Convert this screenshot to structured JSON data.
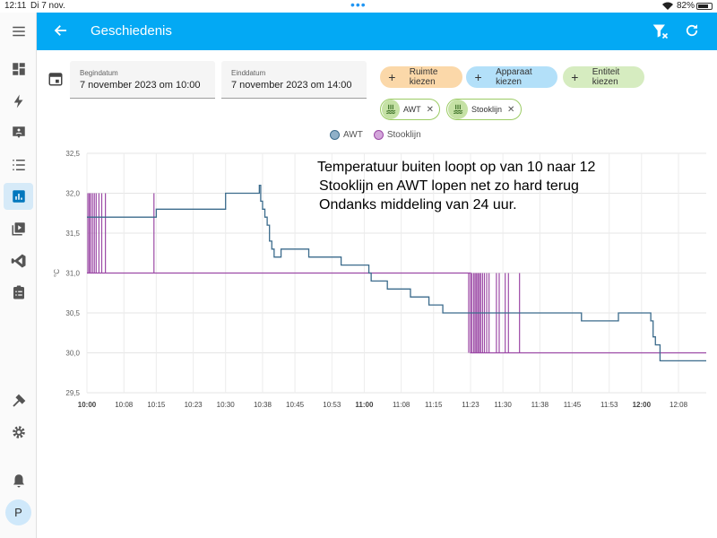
{
  "status_bar": {
    "time": "12:11",
    "date": "Di 7 nov.",
    "battery": "82%",
    "battery_level": 0.82
  },
  "header": {
    "title": "Geschiedenis"
  },
  "sidebar": {
    "items": [
      "dashboard-icon",
      "energy-icon",
      "logbook-icon",
      "todo-list-icon",
      "history-icon",
      "media-icon",
      "vscode-icon",
      "checklist-icon"
    ],
    "active": "history-icon",
    "bottom": [
      "developer-tools-icon",
      "settings-icon",
      "notifications-icon"
    ],
    "avatar": "P"
  },
  "date_range": {
    "start_label": "Begindatum",
    "start_value": "7 november 2023 om 10:00",
    "end_label": "Einddatum",
    "end_value": "7 november 2023 om 14:00"
  },
  "pickers": {
    "area": "Ruimte kiezen",
    "device": "Apparaat kiezen",
    "entity": "Entiteit kiezen"
  },
  "chips": [
    "AWT",
    "Stooklijn"
  ],
  "annotation": {
    "line1": "Temperatuur buiten loopt op van 10 naar 12",
    "line2": "Stooklijn en AWT lopen net zo hard terug",
    "line3": "Ondanks middeling van 24 uur."
  },
  "colors": {
    "accent": "#03a9f4",
    "awt": "#3b6b8c",
    "stooklijn": "#9c4aa6"
  },
  "chart_data": {
    "type": "line",
    "unit": "°C",
    "ylim": [
      29.5,
      32.5
    ],
    "y_ticks": [
      "32,5",
      "32,0",
      "31,5",
      "31,0",
      "30,5",
      "30,0",
      "29,5"
    ],
    "x_ticks": [
      {
        "label": "10:00",
        "bold": true,
        "t": 0
      },
      {
        "label": "10:08",
        "bold": false,
        "t": 8
      },
      {
        "label": "10:15",
        "bold": false,
        "t": 15
      },
      {
        "label": "10:23",
        "bold": false,
        "t": 23
      },
      {
        "label": "10:30",
        "bold": false,
        "t": 30
      },
      {
        "label": "10:38",
        "bold": false,
        "t": 38
      },
      {
        "label": "10:45",
        "bold": false,
        "t": 45
      },
      {
        "label": "10:53",
        "bold": false,
        "t": 53
      },
      {
        "label": "11:00",
        "bold": true,
        "t": 60
      },
      {
        "label": "11:08",
        "bold": false,
        "t": 68
      },
      {
        "label": "11:15",
        "bold": false,
        "t": 75
      },
      {
        "label": "11:23",
        "bold": false,
        "t": 83
      },
      {
        "label": "11:30",
        "bold": false,
        "t": 90
      },
      {
        "label": "11:38",
        "bold": false,
        "t": 98
      },
      {
        "label": "11:45",
        "bold": false,
        "t": 105
      },
      {
        "label": "11:53",
        "bold": false,
        "t": 113
      },
      {
        "label": "12:00",
        "bold": true,
        "t": 120
      },
      {
        "label": "12:08",
        "bold": false,
        "t": 128
      }
    ],
    "series": [
      {
        "name": "AWT",
        "step": true,
        "points": [
          [
            0,
            31.7
          ],
          [
            15,
            31.8
          ],
          [
            30,
            32.0
          ],
          [
            37,
            32.0
          ],
          [
            37.3,
            32.1
          ],
          [
            37.6,
            31.9
          ],
          [
            38,
            31.8
          ],
          [
            38.5,
            31.7
          ],
          [
            39,
            31.6
          ],
          [
            39.5,
            31.4
          ],
          [
            40,
            31.3
          ],
          [
            40.5,
            31.2
          ],
          [
            42,
            31.3
          ],
          [
            48,
            31.2
          ],
          [
            55,
            31.1
          ],
          [
            61,
            31.0
          ],
          [
            61.5,
            30.9
          ],
          [
            65,
            30.8
          ],
          [
            70,
            30.7
          ],
          [
            74,
            30.6
          ],
          [
            77,
            30.5
          ],
          [
            107,
            30.4
          ],
          [
            115,
            30.5
          ],
          [
            122,
            30.4
          ],
          [
            122.5,
            30.2
          ],
          [
            123,
            30.1
          ],
          [
            124,
            29.9
          ],
          [
            134,
            29.9
          ]
        ]
      },
      {
        "name": "Stooklijn",
        "step": true,
        "base": 31.0,
        "segments": [
          [
            0,
            31.0
          ],
          [
            83,
            30.0
          ],
          [
            134,
            30.0
          ]
        ],
        "spikes_up_to_32": [
          0.2,
          0.5,
          0.8,
          1.2,
          1.6,
          2.0,
          2.6,
          3.2,
          4.0,
          14.5
        ],
        "spikes_down_to_30": [
          82.6,
          83.3,
          83.7,
          84.0,
          84.3,
          84.6,
          84.9,
          85.2,
          85.6,
          86.0,
          86.5,
          87.0,
          88.6,
          89.2,
          90.5,
          91.2,
          93.6
        ]
      }
    ]
  }
}
